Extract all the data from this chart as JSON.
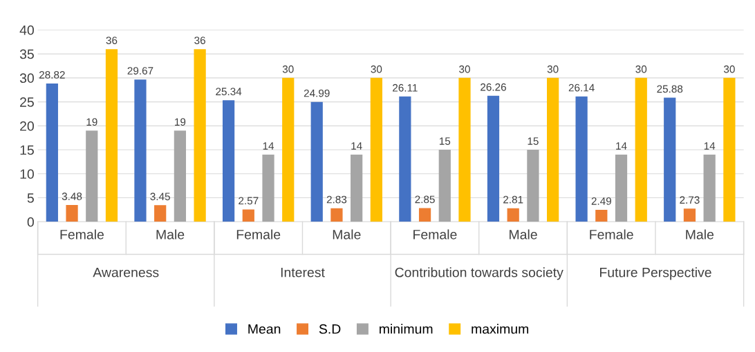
{
  "chart_data": {
    "type": "bar",
    "categories": [
      "Female",
      "Male",
      "Female",
      "Male",
      "Female",
      "Male",
      "Female",
      "Male"
    ],
    "annotations": [
      "Awareness",
      "Interest",
      "Contribution towards society",
      "Future Perspective"
    ],
    "series": [
      {
        "name": "Mean",
        "color": "#4472c4",
        "values": [
          28.82,
          29.67,
          25.34,
          24.99,
          26.11,
          26.26,
          26.14,
          25.88
        ]
      },
      {
        "name": "S.D",
        "color": "#ed7d31",
        "values": [
          3.48,
          3.45,
          2.57,
          2.83,
          2.85,
          2.81,
          2.49,
          2.73
        ]
      },
      {
        "name": "minimum",
        "color": "#a5a5a5",
        "values": [
          19,
          19,
          14,
          14,
          15,
          15,
          14,
          14
        ]
      },
      {
        "name": "maximum",
        "color": "#ffc000",
        "values": [
          36,
          36,
          30,
          30,
          30,
          30,
          30,
          30
        ]
      }
    ],
    "ylim": [
      0,
      40
    ],
    "yticks": [
      0,
      5,
      10,
      15,
      20,
      25,
      30,
      35,
      40
    ],
    "grid": "y",
    "legend": "bottom",
    "data_labels": true
  }
}
